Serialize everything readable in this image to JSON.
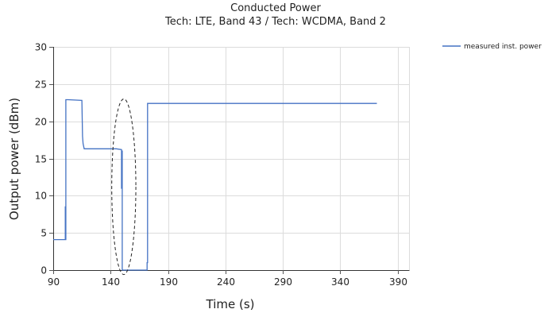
{
  "chart_data": {
    "type": "line",
    "title": "Conducted Power",
    "subtitle": "Tech: LTE, Band 43 / Tech: WCDMA, Band 2",
    "xlabel": "Time (s)",
    "ylabel": "Output power (dBm)",
    "xlim": [
      90,
      400
    ],
    "ylim": [
      0,
      30
    ],
    "x_ticks": [
      90,
      140,
      190,
      240,
      290,
      340,
      390
    ],
    "y_ticks": [
      0,
      5,
      10,
      15,
      20,
      25,
      30
    ],
    "grid": true,
    "legend_position": "top-right",
    "line_color": "#4472c4",
    "series": [
      {
        "name": "measured inst. power",
        "x": [
          90,
          100.5,
          100.5,
          100.8,
          100.8,
          101,
          101,
          103,
          115,
          115.5,
          116,
          117,
          130,
          145,
          149.5,
          149.5,
          149.8,
          149.8,
          150.1,
          150.1,
          152,
          170,
          171.8,
          171.8,
          172.2,
          172.2,
          172.6,
          172.6,
          200,
          250,
          300,
          350,
          372
        ],
        "y": [
          4.1,
          4.1,
          8.5,
          8.5,
          4.1,
          4.1,
          22.9,
          22.9,
          22.8,
          18.0,
          17.0,
          16.3,
          16.3,
          16.3,
          16.2,
          11.0,
          11.0,
          16.0,
          16.0,
          0,
          0,
          0,
          0,
          1.0,
          1.0,
          22.4,
          22.4,
          22.4,
          22.4,
          22.4,
          22.4,
          22.4,
          22.4
        ]
      }
    ],
    "annotations": [
      {
        "type": "dashed-ellipse",
        "x": 151.5,
        "y": 11.2,
        "rx_data": 10.5,
        "ry_data": 11.8
      }
    ]
  }
}
